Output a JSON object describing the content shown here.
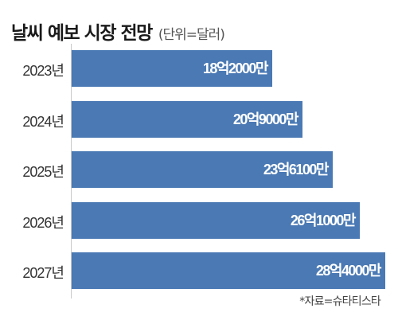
{
  "chart_data": {
    "type": "bar",
    "orientation": "horizontal",
    "title": "날씨 예보 시장 전망",
    "subtitle": "(단위=달러)",
    "categories": [
      "2023년",
      "2024년",
      "2025년",
      "2026년",
      "2027년"
    ],
    "values": [
      1820000000,
      2090000000,
      2361000000,
      2610000000,
      2840000000
    ],
    "value_labels": [
      "18억2000만",
      "20억9000만",
      "23억6100만",
      "26억1000만",
      "28억4000만"
    ],
    "xlim": [
      0,
      2840000000
    ],
    "grid": false,
    "bar_color": "#4a79b4",
    "source": "*자료=슈타티스타"
  }
}
